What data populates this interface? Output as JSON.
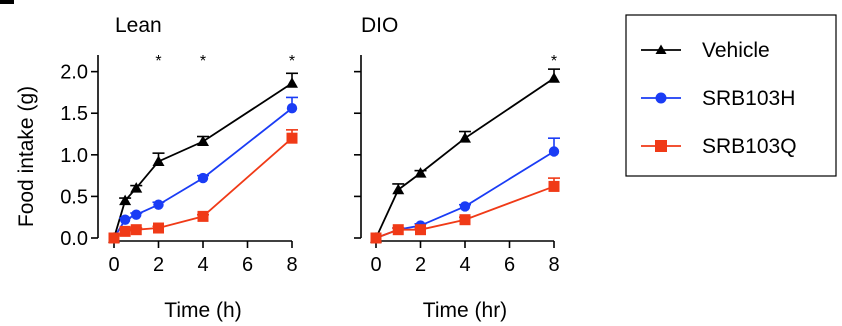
{
  "legend": {
    "entries": [
      {
        "name": "Vehicle",
        "color": "#000000",
        "marker": "triangle"
      },
      {
        "name": "SRB103H",
        "color": "#1a3cf5",
        "marker": "circle"
      },
      {
        "name": "SRB103Q",
        "color": "#f03a17",
        "marker": "square"
      }
    ]
  },
  "chart_data": [
    {
      "type": "line",
      "title": "Lean",
      "xlabel": "Time (h)",
      "ylabel": "Food intake (g)",
      "x_ticks": [
        "0",
        "2",
        "4",
        "6",
        "8"
      ],
      "y_ticks": [
        "0.0",
        "0.5",
        "1.0",
        "1.5",
        "2.0"
      ],
      "xlim": [
        0,
        8
      ],
      "ylim": [
        0,
        2.2
      ],
      "significance": [
        {
          "x": 2,
          "label": "*"
        },
        {
          "x": 4,
          "label": "*"
        },
        {
          "x": 8,
          "label": "*"
        }
      ],
      "series": [
        {
          "name": "Vehicle",
          "color": "#000000",
          "marker": "triangle",
          "x": [
            0,
            0.5,
            1,
            2,
            4,
            8
          ],
          "y": [
            0,
            0.45,
            0.6,
            0.92,
            1.16,
            1.86
          ],
          "err": [
            0,
            0.03,
            0.03,
            0.1,
            0.06,
            0.12
          ]
        },
        {
          "name": "SRB103H",
          "color": "#1a3cf5",
          "marker": "circle",
          "x": [
            0,
            0.5,
            1,
            2,
            4,
            8
          ],
          "y": [
            0,
            0.22,
            0.28,
            0.4,
            0.72,
            1.56
          ],
          "err": [
            0,
            0.02,
            0.02,
            0.03,
            0.03,
            0.13
          ]
        },
        {
          "name": "SRB103Q",
          "color": "#f03a17",
          "marker": "square",
          "x": [
            0,
            0.5,
            1,
            2,
            4,
            8
          ],
          "y": [
            0,
            0.08,
            0.1,
            0.12,
            0.26,
            1.2
          ],
          "err": [
            0,
            0.02,
            0.02,
            0.02,
            0.02,
            0.1
          ]
        }
      ]
    },
    {
      "type": "line",
      "title": "DIO",
      "xlabel": "Time (hr)",
      "ylabel": "",
      "x_ticks": [
        "0",
        "2",
        "4",
        "6",
        "8"
      ],
      "y_ticks": [],
      "xlim": [
        0,
        8
      ],
      "ylim": [
        0,
        2.2
      ],
      "significance": [
        {
          "x": 8,
          "label": "*"
        }
      ],
      "series": [
        {
          "name": "Vehicle",
          "color": "#000000",
          "marker": "triangle",
          "x": [
            0,
            1,
            2,
            4,
            8
          ],
          "y": [
            0,
            0.58,
            0.78,
            1.2,
            1.92
          ],
          "err": [
            0,
            0.07,
            0.03,
            0.08,
            0.11
          ]
        },
        {
          "name": "SRB103H",
          "color": "#1a3cf5",
          "marker": "circle",
          "x": [
            0,
            1,
            2,
            4,
            8
          ],
          "y": [
            0,
            0.1,
            0.15,
            0.38,
            1.04
          ],
          "err": [
            0,
            0.02,
            0.02,
            0.02,
            0.16
          ]
        },
        {
          "name": "SRB103Q",
          "color": "#f03a17",
          "marker": "square",
          "x": [
            0,
            1,
            2,
            4,
            8
          ],
          "y": [
            0,
            0.1,
            0.1,
            0.22,
            0.62
          ],
          "err": [
            0,
            0.02,
            0.02,
            0.03,
            0.1
          ]
        }
      ]
    }
  ]
}
